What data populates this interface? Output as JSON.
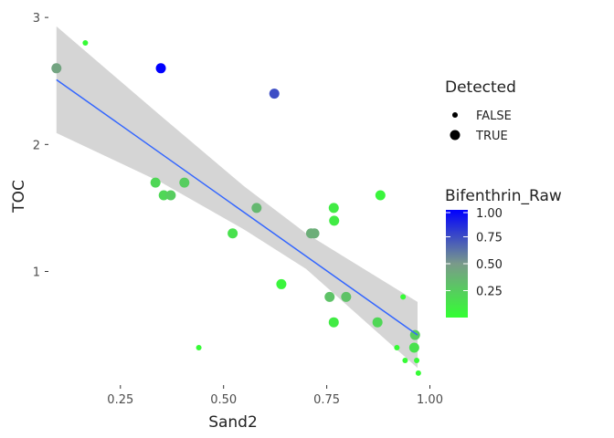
{
  "chart_data": {
    "type": "scatter",
    "xlabel": "Sand2",
    "ylabel": "TOC",
    "xlim": [
      0.08,
      0.99
    ],
    "ylim": [
      0.12,
      3.08
    ],
    "x_ticks": [
      0.25,
      0.5,
      0.75,
      1.0
    ],
    "x_tick_labels": [
      "0.25",
      "0.50",
      "0.75",
      "1.00"
    ],
    "y_ticks": [
      1,
      2,
      3
    ],
    "y_tick_labels": [
      "1",
      "2",
      "3"
    ],
    "grid": false,
    "points": [
      {
        "x": 0.095,
        "y": 2.6,
        "detected": true,
        "bifenthrin": 0.45
      },
      {
        "x": 0.165,
        "y": 2.8,
        "detected": false,
        "bifenthrin": 0.02
      },
      {
        "x": 0.348,
        "y": 2.6,
        "detected": true,
        "bifenthrin": 1.0
      },
      {
        "x": 0.623,
        "y": 2.4,
        "detected": true,
        "bifenthrin": 0.75
      },
      {
        "x": 0.335,
        "y": 1.7,
        "detected": true,
        "bifenthrin": 0.2
      },
      {
        "x": 0.355,
        "y": 1.6,
        "detected": true,
        "bifenthrin": 0.2
      },
      {
        "x": 0.372,
        "y": 1.6,
        "detected": true,
        "bifenthrin": 0.25
      },
      {
        "x": 0.405,
        "y": 1.7,
        "detected": true,
        "bifenthrin": 0.25
      },
      {
        "x": 0.522,
        "y": 1.3,
        "detected": true,
        "bifenthrin": 0.15
      },
      {
        "x": 0.58,
        "y": 1.5,
        "detected": true,
        "bifenthrin": 0.35
      },
      {
        "x": 0.712,
        "y": 1.3,
        "detected": true,
        "bifenthrin": 0.4
      },
      {
        "x": 0.72,
        "y": 1.3,
        "detected": true,
        "bifenthrin": 0.4
      },
      {
        "x": 0.767,
        "y": 1.5,
        "detected": true,
        "bifenthrin": 0.1
      },
      {
        "x": 0.768,
        "y": 1.4,
        "detected": true,
        "bifenthrin": 0.1
      },
      {
        "x": 0.88,
        "y": 1.6,
        "detected": true,
        "bifenthrin": 0.05
      },
      {
        "x": 0.64,
        "y": 0.9,
        "detected": true,
        "bifenthrin": 0.05
      },
      {
        "x": 0.757,
        "y": 0.8,
        "detected": true,
        "bifenthrin": 0.3
      },
      {
        "x": 0.797,
        "y": 0.8,
        "detected": true,
        "bifenthrin": 0.3
      },
      {
        "x": 0.767,
        "y": 0.6,
        "detected": true,
        "bifenthrin": 0.1
      },
      {
        "x": 0.873,
        "y": 0.6,
        "detected": true,
        "bifenthrin": 0.2
      },
      {
        "x": 0.964,
        "y": 0.5,
        "detected": true,
        "bifenthrin": 0.25
      },
      {
        "x": 0.962,
        "y": 0.4,
        "detected": true,
        "bifenthrin": 0.15
      },
      {
        "x": 0.935,
        "y": 0.8,
        "detected": false,
        "bifenthrin": 0.02
      },
      {
        "x": 0.44,
        "y": 0.4,
        "detected": false,
        "bifenthrin": 0.02
      },
      {
        "x": 0.92,
        "y": 0.4,
        "detected": false,
        "bifenthrin": 0.02
      },
      {
        "x": 0.94,
        "y": 0.3,
        "detected": false,
        "bifenthrin": 0.02
      },
      {
        "x": 0.968,
        "y": 0.3,
        "detected": false,
        "bifenthrin": 0.02
      },
      {
        "x": 0.972,
        "y": 0.2,
        "detected": false,
        "bifenthrin": 0.02
      }
    ],
    "fit_line": {
      "x": [
        0.095,
        0.97
      ],
      "y": [
        2.51,
        0.5
      ]
    },
    "confidence_band": {
      "x": [
        0.095,
        0.35,
        0.55,
        0.7,
        0.97
      ],
      "upper": [
        2.93,
        2.22,
        1.67,
        1.3,
        0.76
      ],
      "lower": [
        2.09,
        1.7,
        1.33,
        1.02,
        0.24
      ]
    },
    "colors": {
      "fit_line": "#3366ff",
      "band": "#d3d3d3",
      "gradient_low": "#33ff33",
      "gradient_mid": "#7a9a8a",
      "gradient_high": "#0000ff"
    },
    "legend": {
      "position": "right",
      "detected": {
        "title": "Detected",
        "items": [
          "FALSE",
          "TRUE"
        ]
      },
      "bifenthrin": {
        "title": "Bifenthrin_Raw",
        "range": [
          0.0,
          1.0
        ],
        "ticks": [
          0.25,
          0.5,
          0.75,
          1.0
        ],
        "tick_labels": [
          "0.25",
          "0.50",
          "0.75",
          "1.00"
        ]
      }
    }
  }
}
